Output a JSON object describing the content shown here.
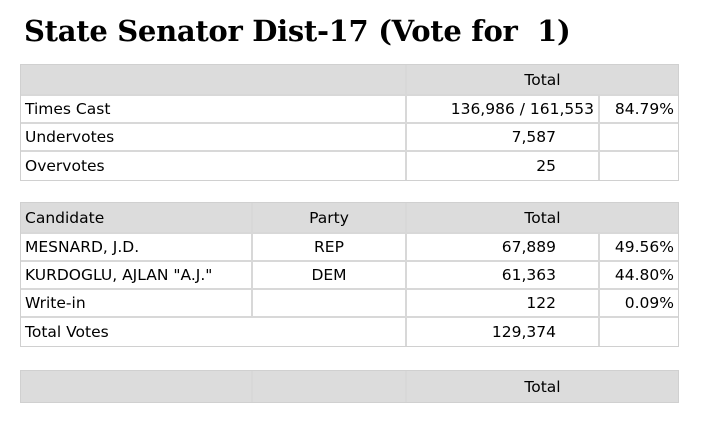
{
  "title": "State Senator Dist-17 (Vote for  1)",
  "summary": {
    "header_total": "Total",
    "rows": [
      {
        "label": "Times Cast",
        "value": "136,986 / 161,553",
        "pct": "84.79%"
      },
      {
        "label": "Undervotes",
        "value": "7,587",
        "pct": ""
      },
      {
        "label": "Overvotes",
        "value": "25",
        "pct": ""
      }
    ]
  },
  "results": {
    "headers": {
      "candidate": "Candidate",
      "party": "Party",
      "total": "Total"
    },
    "rows": [
      {
        "candidate": "MESNARD, J.D.",
        "party": "REP",
        "total": "67,889",
        "pct": "49.56%"
      },
      {
        "candidate": "KURDOGLU, AJLAN \"A.J.\"",
        "party": "DEM",
        "total": "61,363",
        "pct": "44.80%"
      },
      {
        "candidate": "Write-in",
        "party": "",
        "total": "122",
        "pct": "0.09%"
      }
    ],
    "total_row": {
      "label": "Total Votes",
      "total": "129,374",
      "pct": ""
    }
  },
  "footer": {
    "header_total": "Total"
  }
}
